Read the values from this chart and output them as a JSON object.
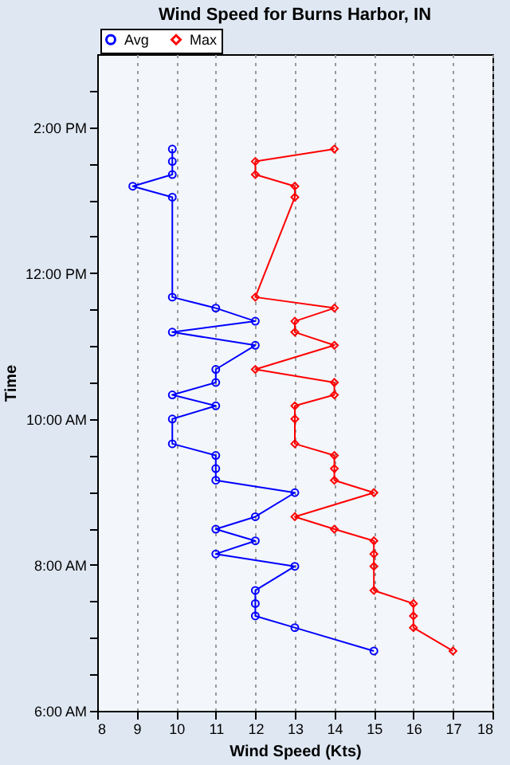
{
  "chart_data": {
    "type": "line",
    "title": "Wind Speed for Burns Harbor, IN",
    "xlabel": "Wind Speed (Kts)",
    "ylabel": "Time",
    "xlim": [
      8,
      18
    ],
    "xticks": [
      8,
      9,
      10,
      11,
      12,
      13,
      14,
      15,
      16,
      17,
      18
    ],
    "ylim": [
      6,
      15
    ],
    "yticks": [
      {
        "value": 6,
        "label": "6:00 AM"
      },
      {
        "value": 6.5,
        "label": null
      },
      {
        "value": 7,
        "label": null
      },
      {
        "value": 7.5,
        "label": null
      },
      {
        "value": 8,
        "label": "8:00 AM"
      },
      {
        "value": 8.5,
        "label": null
      },
      {
        "value": 9,
        "label": null
      },
      {
        "value": 9.5,
        "label": null
      },
      {
        "value": 10,
        "label": "10:00 AM"
      },
      {
        "value": 10.5,
        "label": null
      },
      {
        "value": 11,
        "label": null
      },
      {
        "value": 11.5,
        "label": null
      },
      {
        "value": 12,
        "label": "12:00 PM"
      },
      {
        "value": 12.5,
        "label": null
      },
      {
        "value": 13,
        "label": null
      },
      {
        "value": 13.5,
        "label": null
      },
      {
        "value": 14,
        "label": "2:00 PM"
      },
      {
        "value": 14.5,
        "label": null
      }
    ],
    "grid": "x",
    "legend": "top left",
    "series": [
      {
        "name": "Avg",
        "color": "#0000ff",
        "marker": "circle",
        "x": [
          9.9,
          9.9,
          9.9,
          8.9,
          9.9,
          9.9,
          11,
          12,
          9.9,
          12,
          11,
          11,
          9.9,
          11,
          9.9,
          9.9,
          11,
          11,
          11,
          13,
          12,
          11,
          12,
          11,
          13,
          12,
          12,
          12,
          13,
          15
        ],
        "values": [
          13.7,
          13.53,
          13.35,
          13.19,
          13.04,
          11.67,
          11.52,
          11.34,
          11.19,
          11.01,
          10.68,
          10.5,
          10.33,
          10.18,
          10.0,
          9.66,
          9.5,
          9.32,
          9.16,
          8.99,
          8.66,
          8.49,
          8.33,
          8.15,
          7.98,
          7.65,
          7.47,
          7.3,
          7.14,
          6.82
        ]
      },
      {
        "name": "Max",
        "color": "#ff0000",
        "marker": "diamond",
        "x": [
          14,
          12,
          12,
          13,
          13,
          12,
          14,
          13,
          13,
          14,
          12,
          14,
          14,
          13,
          13,
          13,
          14,
          14,
          14,
          15,
          13,
          14,
          15,
          15,
          15,
          15,
          16,
          16,
          16,
          17
        ],
        "values": [
          13.7,
          13.53,
          13.35,
          13.19,
          13.04,
          11.67,
          11.52,
          11.34,
          11.19,
          11.01,
          10.68,
          10.5,
          10.33,
          10.18,
          10.0,
          9.66,
          9.5,
          9.32,
          9.16,
          8.99,
          8.66,
          8.49,
          8.33,
          8.15,
          7.98,
          7.65,
          7.47,
          7.3,
          7.14,
          6.82
        ]
      }
    ]
  }
}
